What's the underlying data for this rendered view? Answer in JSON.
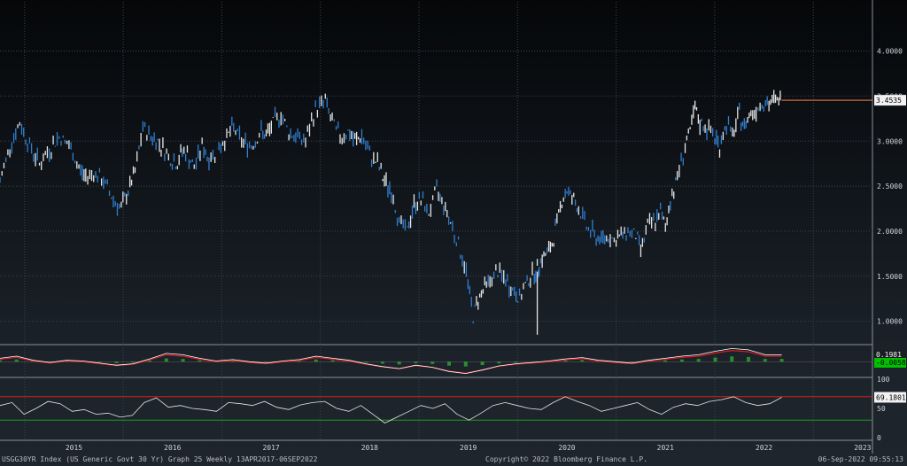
{
  "chart_data": [
    {
      "type": "line",
      "subtype": "ohlc-weekly",
      "title": "",
      "xlabel": "",
      "ylabel": "",
      "x_ticks": [
        "2015",
        "2016",
        "2017",
        "2018",
        "2019",
        "2020",
        "2021",
        "2022",
        "2023"
      ],
      "xlim": [
        2014.75,
        2023.6
      ],
      "ylim": [
        0.75,
        4.35
      ],
      "y_ticks": [
        "1.0000",
        "1.5000",
        "2.0000",
        "2.5000",
        "3.0000",
        "3.5000",
        "4.0000"
      ],
      "grid": true,
      "last_value_label": "3.4535",
      "last_value": 3.4535,
      "colors": {
        "up": "#e6e6e6",
        "down": "#2f7fd0",
        "last_line": "#c8683a",
        "grid": "#3a434e",
        "axis_text": "#d0d4da"
      },
      "series": [
        {
          "values_x": [
            2014.75,
            2014.85,
            2014.95,
            2015.05,
            2015.15,
            2015.25,
            2015.35,
            2015.45,
            2015.55,
            2015.62,
            2015.7,
            2015.8,
            2015.9,
            2015.98,
            2016.05,
            2016.12,
            2016.2,
            2016.28,
            2016.35,
            2016.42,
            2016.48,
            2016.55,
            2016.6,
            2016.65,
            2016.72,
            2016.8,
            2016.87,
            2016.95,
            2017.05,
            2017.12,
            2017.2,
            2017.3,
            2017.4,
            2017.45,
            2017.52,
            2017.6,
            2017.68,
            2017.75,
            2017.85,
            2017.95,
            2018.05,
            2018.12,
            2018.2,
            2018.28,
            2018.35,
            2018.42,
            2018.5,
            2018.58,
            2018.65,
            2018.72,
            2018.8,
            2018.88,
            2018.95,
            2019.02,
            2019.1,
            2019.18,
            2019.25,
            2019.32,
            2019.4,
            2019.48,
            2019.55,
            2019.6,
            2019.65,
            2019.72,
            2019.8,
            2019.88,
            2019.95,
            2020.02,
            2020.08,
            2020.13,
            2020.17,
            2020.2,
            2020.22,
            2020.25,
            2020.3,
            2020.35,
            2020.4,
            2020.45,
            2020.5,
            2020.57,
            2020.62,
            2020.7,
            2020.78,
            2020.85,
            2020.92,
            2021.0,
            2021.05,
            2021.12,
            2021.2,
            2021.25,
            2021.32,
            2021.38,
            2021.45,
            2021.5,
            2021.55,
            2021.62,
            2021.7,
            2021.75,
            2021.8,
            2021.85,
            2021.92,
            2022.0,
            2022.05,
            2022.12,
            2022.18,
            2022.25,
            2022.3,
            2022.35,
            2022.42,
            2022.48,
            2022.55,
            2022.6,
            2022.65,
            2022.68
          ],
          "values_y": [
            2.55,
            2.95,
            3.2,
            2.95,
            2.75,
            2.9,
            3.05,
            2.95,
            2.7,
            2.6,
            2.65,
            2.55,
            2.35,
            2.25,
            2.45,
            2.65,
            3.15,
            3.05,
            3.0,
            2.9,
            2.8,
            2.75,
            2.9,
            2.85,
            2.7,
            2.95,
            2.8,
            2.9,
            3.05,
            3.15,
            3.0,
            2.95,
            3.1,
            3.05,
            3.2,
            3.3,
            3.1,
            3.05,
            3.0,
            3.35,
            3.45,
            3.2,
            3.05,
            3.1,
            3.0,
            3.05,
            2.85,
            2.75,
            2.55,
            2.45,
            2.1,
            2.0,
            2.3,
            2.35,
            2.2,
            2.45,
            2.3,
            2.1,
            1.85,
            1.55,
            1.05,
            1.25,
            1.35,
            1.45,
            1.55,
            1.45,
            1.35,
            1.25,
            1.4,
            1.5,
            1.55,
            1.55,
            1.65,
            1.7,
            1.75,
            1.85,
            2.1,
            2.35,
            2.45,
            2.35,
            2.25,
            2.05,
            1.95,
            1.9,
            1.95,
            1.9,
            1.95,
            2.0,
            1.95,
            1.8,
            2.05,
            2.1,
            2.2,
            2.05,
            2.35,
            2.6,
            2.95,
            3.1,
            3.35,
            3.2,
            3.15,
            3.05,
            2.95,
            3.2,
            3.05,
            3.3,
            3.15,
            3.3,
            3.35,
            3.45,
            3.4,
            3.45,
            3.45,
            3.4535
          ]
        }
      ]
    },
    {
      "type": "line",
      "subtype": "macd-panel",
      "labels_shown": [
        "0.1981",
        "-0.0058"
      ],
      "label_colors": [
        "#f2f2f2",
        "#00c000"
      ],
      "series_colors": {
        "macd": "#ffffff",
        "signal": "#d81b1b",
        "histogram": "#2faa2f"
      },
      "values_y": [
        0.05,
        0.08,
        0.02,
        -0.01,
        0.02,
        0.01,
        -0.02,
        -0.05,
        -0.03,
        0.04,
        0.12,
        0.1,
        0.05,
        0.01,
        0.03,
        0.0,
        -0.02,
        0.01,
        0.03,
        0.08,
        0.05,
        0.02,
        -0.03,
        -0.07,
        -0.1,
        -0.05,
        -0.08,
        -0.14,
        -0.17,
        -0.12,
        -0.06,
        -0.03,
        -0.01,
        0.01,
        0.04,
        0.06,
        0.02,
        0.0,
        -0.02,
        0.02,
        0.05,
        0.08,
        0.1,
        0.15,
        0.19,
        0.17,
        0.1,
        0.1
      ]
    },
    {
      "type": "line",
      "subtype": "rsi-panel",
      "y_ticks": [
        "100",
        "50",
        "0"
      ],
      "ylim": [
        0,
        100
      ],
      "reference_lines": [
        70,
        30
      ],
      "last_value_label": "69.1801",
      "series_colors": {
        "rsi": "#e8e8e8",
        "upper": "#d81b1b",
        "lower": "#1f9c1f"
      },
      "values_y": [
        55,
        60,
        40,
        50,
        62,
        58,
        45,
        48,
        40,
        42,
        35,
        38,
        60,
        68,
        52,
        55,
        50,
        48,
        45,
        60,
        58,
        55,
        62,
        52,
        48,
        56,
        60,
        62,
        50,
        45,
        55,
        40,
        25,
        35,
        45,
        55,
        50,
        58,
        40,
        30,
        42,
        55,
        60,
        55,
        50,
        48,
        60,
        70,
        62,
        55,
        45,
        50,
        55,
        60,
        48,
        40,
        52,
        58,
        55,
        62,
        65,
        70,
        60,
        55,
        58,
        69
      ]
    }
  ],
  "footer": {
    "left": "USGG30YR Index (US Generic Govt 30 Yr) Graph 25  Weekly 13APR2017-06SEP2022",
    "center": "Copyright© 2022 Bloomberg Finance L.P.",
    "right": "06-Sep-2022 09:55:13"
  }
}
